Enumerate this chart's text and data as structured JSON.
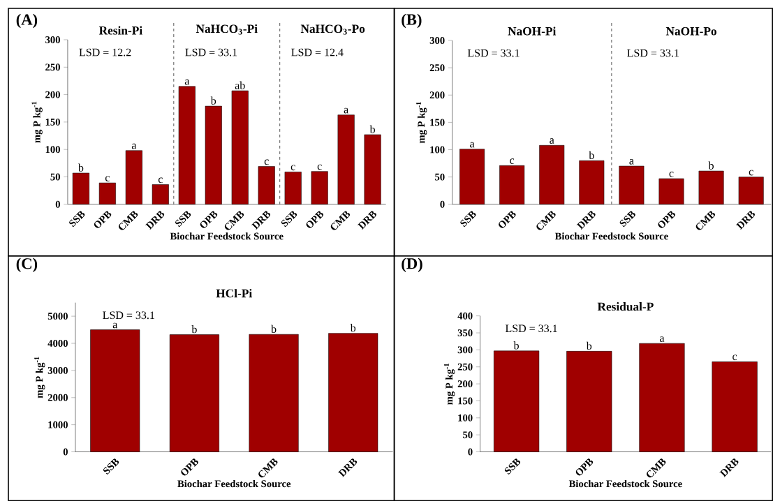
{
  "chart_data": [
    {
      "type": "bar",
      "categories": [
        "SSB",
        "OPB",
        "CMB",
        "DRB",
        "SSB",
        "OPB",
        "CMB",
        "DRB",
        "SSB",
        "OPB",
        "CMB",
        "DRB"
      ],
      "values": [
        57,
        39,
        98,
        36,
        215,
        179,
        207,
        69,
        59,
        60,
        163,
        127
      ],
      "value_labels": [
        "b",
        "c",
        "a",
        "c",
        "a",
        "b",
        "ab",
        "c",
        "c",
        "c",
        "a",
        "b"
      ],
      "color": "#a00000",
      "xlabel": "Biochar Feedstock Source",
      "ylabel": "mg P kg$^{-1}$",
      "ylim": [
        0,
        300
      ],
      "yticks": [
        0,
        50,
        100,
        150,
        200,
        250,
        300
      ],
      "annotations": [
        "(A)",
        "Resin-Pi",
        "LSD = 12.2",
        "NaHCO$_{3}$-Pi",
        "LSD = 33.1",
        "NaHCO$_{3}$-Po",
        "LSD = 12.4"
      ]
    },
    {
      "type": "bar",
      "categories": [
        "SSB",
        "OPB",
        "CMB",
        "DRB",
        "SSB",
        "OPB",
        "CMB",
        "DRB"
      ],
      "values": [
        101,
        71,
        108,
        80,
        70,
        47,
        61,
        50
      ],
      "value_labels": [
        "a",
        "c",
        "a",
        "b",
        "a",
        "c",
        "b",
        "c"
      ],
      "color": "#a00000",
      "xlabel": "Biochar Feedstock Source",
      "ylabel": "mg P kg$^{-1}$",
      "ylim": [
        0,
        300
      ],
      "yticks": [
        0,
        50,
        100,
        150,
        200,
        250,
        300
      ],
      "annotations": [
        "(B)",
        "NaOH-Pi",
        "LSD = 33.1",
        "NaOH-Po",
        "LSD = 33.1"
      ]
    },
    {
      "type": "bar",
      "categories": [
        "SSB",
        "OPB",
        "CMB",
        "DRB"
      ],
      "values": [
        4500,
        4320,
        4330,
        4370
      ],
      "value_labels": [
        "a",
        "b",
        "b",
        "b"
      ],
      "color": "#a00000",
      "xlabel": "Biochar Feedstock Source",
      "ylabel": "mg P kg$^{-1}$",
      "ylim": [
        0,
        5500
      ],
      "yticks": [
        0,
        1000,
        2000,
        3000,
        4000,
        5000
      ],
      "annotations": [
        "(C)",
        "HCl-Pi",
        "LSD = 33.1"
      ]
    },
    {
      "type": "bar",
      "categories": [
        "SSB",
        "OPB",
        "CMB",
        "DRB"
      ],
      "values": [
        297,
        296,
        319,
        265
      ],
      "value_labels": [
        "b",
        "b",
        "a",
        "c"
      ],
      "color": "#a00000",
      "xlabel": "Biochar Feedstock Source",
      "ylabel": "mg P kg$^{-1}$",
      "ylim": [
        0,
        400
      ],
      "yticks": [
        0,
        50,
        100,
        150,
        200,
        250,
        300,
        350,
        400
      ],
      "annotations": [
        "(D)",
        "Residual-P",
        "LSD = 33.1"
      ]
    }
  ]
}
